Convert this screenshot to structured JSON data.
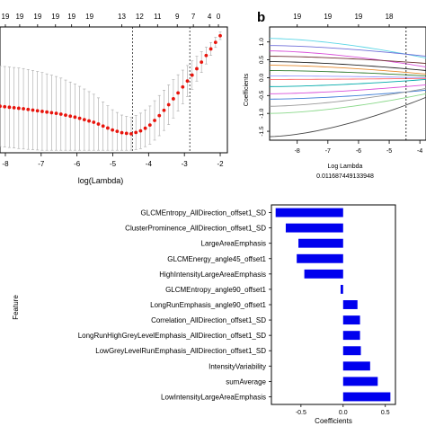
{
  "chart_data": [
    {
      "type": "scatter",
      "xlabel": "log(Lambda)",
      "ylabel": "",
      "top_ticks": [
        "19",
        "19",
        "19",
        "19",
        "19",
        "19",
        "13",
        "12",
        "11",
        "9",
        "7",
        "4",
        "0"
      ],
      "top_tick_x": [
        -8.0,
        -7.6,
        -7.1,
        -6.6,
        -6.15,
        -5.65,
        -4.75,
        -4.25,
        -3.75,
        -3.2,
        -2.75,
        -2.3,
        -2.05
      ],
      "xticks": [
        "-8",
        "-7",
        "-6",
        "-5",
        "-4",
        "-3",
        "-2"
      ],
      "xtick_values": [
        -8,
        -7,
        -6,
        -5,
        -4,
        -3,
        -2
      ],
      "xlim": [
        -8.15,
        -1.8
      ],
      "ylim": [
        0,
        1
      ],
      "vlines": [
        -4.45,
        -2.85
      ],
      "series": [
        {
          "x": [
            -8.15,
            -7.5,
            -7.0,
            -6.5,
            -6.0,
            -5.5,
            -5.0,
            -4.75,
            -4.5,
            -4.25,
            -4.0,
            -3.75,
            -3.5,
            -3.25,
            -3.0,
            -2.75,
            -2.5,
            -2.25,
            -2.0
          ],
          "y": [
            0.37,
            0.35,
            0.33,
            0.31,
            0.28,
            0.24,
            0.18,
            0.16,
            0.15,
            0.17,
            0.21,
            0.28,
            0.36,
            0.45,
            0.54,
            0.63,
            0.73,
            0.83,
            0.93
          ],
          "err": [
            0.32,
            0.32,
            0.31,
            0.29,
            0.26,
            0.22,
            0.16,
            0.14,
            0.13,
            0.14,
            0.15,
            0.16,
            0.16,
            0.15,
            0.13,
            0.11,
            0.08,
            0.05,
            0.03
          ]
        }
      ]
    },
    {
      "type": "line",
      "panel_label": "b",
      "top_ticks": [
        "19",
        "19",
        "19",
        "18"
      ],
      "top_tick_x": [
        -8,
        -7,
        -6,
        -5
      ],
      "xticks": [
        "-8",
        "-7",
        "-6",
        "-5",
        "-4"
      ],
      "xtick_values": [
        -8,
        -7,
        -6,
        -5,
        -4
      ],
      "yticks": [
        "-1.5",
        "-1.0",
        "-0.5",
        "0.0",
        "0.5",
        "1.0"
      ],
      "ytick_values": [
        -1.5,
        -1.0,
        -0.5,
        0.0,
        0.5,
        1.0
      ],
      "xlim": [
        -8.9,
        -3.8
      ],
      "ylim": [
        -1.75,
        1.42
      ],
      "ylabel": "Coefficients",
      "xlabel": "Log Lambda",
      "lambda_value": "0.011687449133948",
      "vline": -4.45,
      "series": [
        {
          "color": "#5bd6e6",
          "start": 1.1,
          "end": 0.55
        },
        {
          "color": "#6f6fd8",
          "start": 0.9,
          "end": 0.6
        },
        {
          "color": "#d94fd9",
          "start": 0.75,
          "end": 0.3
        },
        {
          "color": "#6b2f2f",
          "start": 0.6,
          "end": 0.4
        },
        {
          "color": "#222222",
          "start": 0.45,
          "end": 0.2
        },
        {
          "color": "#e68a2e",
          "start": 0.35,
          "end": 0.1
        },
        {
          "color": "#2d7a2d",
          "start": 0.2,
          "end": 0.05
        },
        {
          "color": "#9999ff",
          "start": 0.05,
          "end": 0.0
        },
        {
          "color": "#ff6666",
          "start": -0.05,
          "end": -0.02
        },
        {
          "color": "#00aaaa",
          "start": -0.25,
          "end": -0.05
        },
        {
          "color": "#d94fd9",
          "start": -0.45,
          "end": -0.2
        },
        {
          "color": "#3b7bd6",
          "start": -0.6,
          "end": -0.35
        },
        {
          "color": "#999999",
          "start": -0.8,
          "end": -0.3
        },
        {
          "color": "#8ad88a",
          "start": -1.0,
          "end": -0.45
        },
        {
          "color": "#444444",
          "start": -1.65,
          "end": -0.55
        }
      ]
    },
    {
      "type": "bar",
      "orientation": "horizontal",
      "ylabel": "Feature",
      "xlabel": "Coefficients",
      "xticks": [
        "-0.5",
        "0.0",
        "0.5"
      ],
      "xtick_values": [
        -0.5,
        0.0,
        0.5
      ],
      "xlim": [
        -0.85,
        0.62
      ],
      "categories": [
        "GLCMEntropy_AllDirection_offset1_SD",
        "ClusterProminence_AllDirection_offset1_SD",
        "LargeAreaEmphasis",
        "GLCMEnergy_angle45_offset1",
        "HighIntensityLargeAreaEmphasis",
        "GLCMEntropy_angle90_offset1",
        "LongRunEmphasis_angle90_offset1",
        "Correlation_AllDirection_offset1_SD",
        "LongRunHighGreyLevelEmphasis_AllDirection_offset1_SD",
        "LowGreyLevelRunEmphasis_AllDirection_offset1_SD",
        "IntensityVariability",
        "sumAverage",
        "LowIntensityLargeAreaEmphasis"
      ],
      "values": [
        -0.8,
        -0.68,
        -0.53,
        -0.55,
        -0.46,
        -0.03,
        0.17,
        0.2,
        0.2,
        0.21,
        0.32,
        0.41,
        0.56
      ],
      "bar_color": "#0000ee"
    }
  ]
}
